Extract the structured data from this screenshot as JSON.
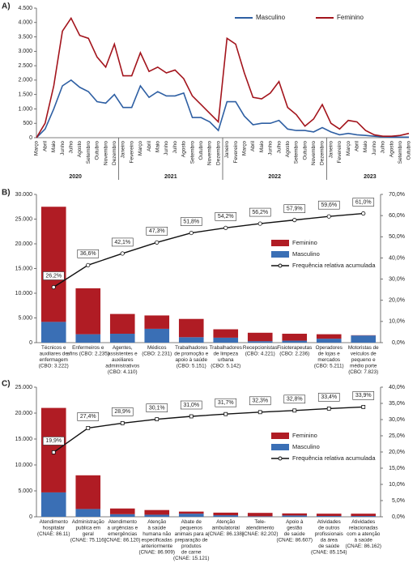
{
  "chart_data": [
    {
      "panel_label": "A)",
      "type": "line",
      "categories": [
        "Março",
        "Abril",
        "Maio",
        "Junho",
        "Julho",
        "Agosto",
        "Setembro",
        "Outubro",
        "Novembro",
        "Dezembro",
        "Janeiro",
        "Fevereiro",
        "Março",
        "Abril",
        "Maio",
        "Junho",
        "Julho",
        "Agosto",
        "Setembro",
        "Outubro",
        "Novembro",
        "Dezembro",
        "Janeiro",
        "Fevereiro",
        "Março",
        "Abril",
        "Maio",
        "Junho",
        "Julho",
        "Agosto",
        "Setembro",
        "Outubro",
        "Novembro",
        "Dezembro",
        "Janeiro",
        "Fevereiro",
        "Março",
        "Abril",
        "Maio",
        "Junho",
        "Julho",
        "Agosto",
        "Setembro",
        "Outubro"
      ],
      "year_labels": [
        "2020",
        "2021",
        "2022",
        "2023"
      ],
      "ylim": [
        0,
        4500
      ],
      "yticks": [
        0,
        500,
        {
          "value": 1000,
          "label": "1.000"
        },
        {
          "value": 1500,
          "label": "1.500"
        },
        {
          "value": 2000,
          "label": "2.000"
        },
        {
          "value": 2500,
          "label": "2.500"
        },
        {
          "value": 3000,
          "label": "3.000"
        },
        {
          "value": 3500,
          "label": "3.500"
        },
        {
          "value": 4000,
          "label": "4.000"
        },
        {
          "value": 4500,
          "label": "4.500"
        }
      ],
      "series": [
        {
          "name": "Masculino",
          "color": "#2e5fa3",
          "values": [
            0,
            300,
            1000,
            1800,
            2000,
            1750,
            1600,
            1250,
            1200,
            1500,
            1050,
            1050,
            1800,
            1400,
            1600,
            1450,
            1450,
            1550,
            700,
            700,
            550,
            250,
            1250,
            1250,
            750,
            450,
            500,
            500,
            600,
            300,
            250,
            250,
            200,
            350,
            200,
            100,
            150,
            100,
            80,
            50,
            30,
            20,
            20,
            20
          ]
        },
        {
          "name": "Feminino",
          "color": "#a3141c",
          "values": [
            0,
            500,
            1800,
            3700,
            4150,
            3550,
            3450,
            2800,
            2450,
            3250,
            2150,
            2150,
            2950,
            2300,
            2450,
            2250,
            2350,
            2050,
            1450,
            1150,
            850,
            550,
            3450,
            3250,
            2250,
            1400,
            1350,
            1550,
            1950,
            1050,
            800,
            400,
            650,
            1150,
            500,
            300,
            600,
            550,
            250,
            100,
            50,
            50,
            80,
            150
          ]
        }
      ]
    },
    {
      "panel_label": "B)",
      "type": "bar",
      "stacked": true,
      "categories": [
        [
          "Técnicos e",
          "auxiliares de",
          "enfermagem",
          "(CBO: 3.222)"
        ],
        [
          "Enfermeiros e",
          "afins (CBO: 2.235)"
        ],
        [
          "Agentes,",
          "assistentes e",
          "auxiliares",
          "administrativos",
          "(CBO: 4.110)"
        ],
        [
          "Médicos",
          "(CBO: 2.231)"
        ],
        [
          "Trabalhadores",
          "de promoção e",
          "apoio à saúde",
          "(CBO: 5.151)"
        ],
        [
          "Trabalhadores",
          "de limpeza",
          "urbana",
          "(CBO: 5.142)"
        ],
        [
          "Recepcionistas",
          "(CBO: 4.221)"
        ],
        [
          "Fisioterapeutas",
          "(CBO: 2.236)"
        ],
        [
          "Operadores",
          "de lojas e",
          "mercados",
          "(CBO: 5.211)"
        ],
        [
          "Motoristas de",
          "veículos de",
          "pequeno e",
          "médio porte",
          "(CBO: 7.823)"
        ]
      ],
      "ylim": [
        0,
        30000
      ],
      "yticks": [
        0,
        {
          "value": 5000,
          "label": "5.000"
        },
        {
          "value": 10000,
          "label": "10.000"
        },
        {
          "value": 15000,
          "label": "15.000"
        },
        {
          "value": 20000,
          "label": "20.000"
        },
        {
          "value": 25000,
          "label": "25.000"
        },
        {
          "value": 30000,
          "label": "30.000"
        }
      ],
      "y2lim": [
        0,
        70
      ],
      "y2ticks": [
        {
          "value": 0,
          "label": "0,0%"
        },
        {
          "value": 10,
          "label": "10,0%"
        },
        {
          "value": 20,
          "label": "20,0%"
        },
        {
          "value": 30,
          "label": "30,0%"
        },
        {
          "value": 40,
          "label": "40,0%"
        },
        {
          "value": 50,
          "label": "50,0%"
        },
        {
          "value": 60,
          "label": "60,0%"
        },
        {
          "value": 70,
          "label": "70,0%"
        }
      ],
      "series": [
        {
          "name": "Masculino",
          "color": "#3a6fb5",
          "values": [
            4200,
            1700,
            1800,
            2800,
            1100,
            1000,
            300,
            400,
            800,
            1450
          ]
        },
        {
          "name": "Feminino",
          "color": "#b01c24",
          "values": [
            23300,
            9300,
            4000,
            2700,
            3700,
            1700,
            1700,
            1400,
            900,
            50
          ]
        },
        {
          "name": "Frequência relativa acumulada",
          "type": "line",
          "axis": "y2",
          "color": "#111",
          "marker": "circle",
          "values": [
            26.2,
            36.6,
            42.1,
            47.3,
            51.8,
            54.2,
            56.2,
            57.9,
            59.6,
            61.0
          ],
          "value_labels": [
            "26,2%",
            "36,6%",
            "42,1%",
            "47,3%",
            "51,8%",
            "54,2%",
            "56,2%",
            "57,9%",
            "59,6%",
            "61,0%"
          ]
        }
      ]
    },
    {
      "panel_label": "C)",
      "type": "bar",
      "stacked": true,
      "categories": [
        [
          "Atendimento",
          "hospitalar",
          "(CNAE: 86.11)"
        ],
        [
          "Administração",
          "publica em",
          "geral",
          "(CNAE: 75.116)"
        ],
        [
          "Atendimento",
          "a urgências e",
          "emergências",
          "(CNAE: 86.120)"
        ],
        [
          "Atenção",
          "à saúde",
          "humana não",
          "especificadas",
          "anteriormente",
          "(CNAE: 86.909)"
        ],
        [
          "Abate de",
          "pequenos",
          "animais para a",
          "preparação de",
          "produtos",
          "de carne",
          "(CNAE: 15.121)"
        ],
        [
          "Atenção",
          "ambulatorial",
          "(CNAE: 86.138)"
        ],
        [
          "Tele-",
          "atendimento",
          "(CNAE: 82.202)"
        ],
        [
          "Apoio à",
          "gestão",
          "de saúde",
          "(CNAE: 86.607)"
        ],
        [
          "Atividades",
          "de outros",
          "profissionais",
          "da área",
          "de saúde",
          "(CNAE: 85.154)"
        ],
        [
          "Atividades",
          "relacionadas",
          "com a atenção",
          "à saúde",
          "(CNAE: 86.162)"
        ]
      ],
      "ylim": [
        0,
        25000
      ],
      "yticks": [
        0,
        {
          "value": 5000,
          "label": "5.000"
        },
        {
          "value": 10000,
          "label": "10.000"
        },
        {
          "value": 15000,
          "label": "15.000"
        },
        {
          "value": 20000,
          "label": "20.000"
        },
        {
          "value": 25000,
          "label": "25.000"
        }
      ],
      "y2lim": [
        0,
        40
      ],
      "y2ticks": [
        {
          "value": 0,
          "label": "0,0%"
        },
        {
          "value": 5,
          "label": "5,0%"
        },
        {
          "value": 10,
          "label": "10,0%"
        },
        {
          "value": 15,
          "label": "15,0%"
        },
        {
          "value": 20,
          "label": "20,0%"
        },
        {
          "value": 25,
          "label": "25,0%"
        },
        {
          "value": 30,
          "label": "30,0%"
        },
        {
          "value": 35,
          "label": "35,0%"
        },
        {
          "value": 40,
          "label": "40,0%"
        }
      ],
      "series": [
        {
          "name": "Masculino",
          "color": "#3a6fb5",
          "values": [
            4700,
            1500,
            500,
            400,
            600,
            300,
            100,
            250,
            150,
            150
          ]
        },
        {
          "name": "Feminino",
          "color": "#b01c24",
          "values": [
            16300,
            6500,
            1100,
            900,
            400,
            500,
            650,
            400,
            450,
            450
          ]
        },
        {
          "name": "Frequência relativa acumulada",
          "type": "line",
          "axis": "y2",
          "color": "#111",
          "marker": "square",
          "values": [
            19.9,
            27.4,
            28.9,
            30.1,
            31.0,
            31.7,
            32.3,
            32.8,
            33.4,
            33.9
          ],
          "value_labels": [
            "19,9%",
            "27,4%",
            "28,9%",
            "30,1%",
            "31,0%",
            "31,7%",
            "32,3%",
            "32,8%",
            "33,4%",
            "33,9%"
          ]
        }
      ]
    }
  ]
}
